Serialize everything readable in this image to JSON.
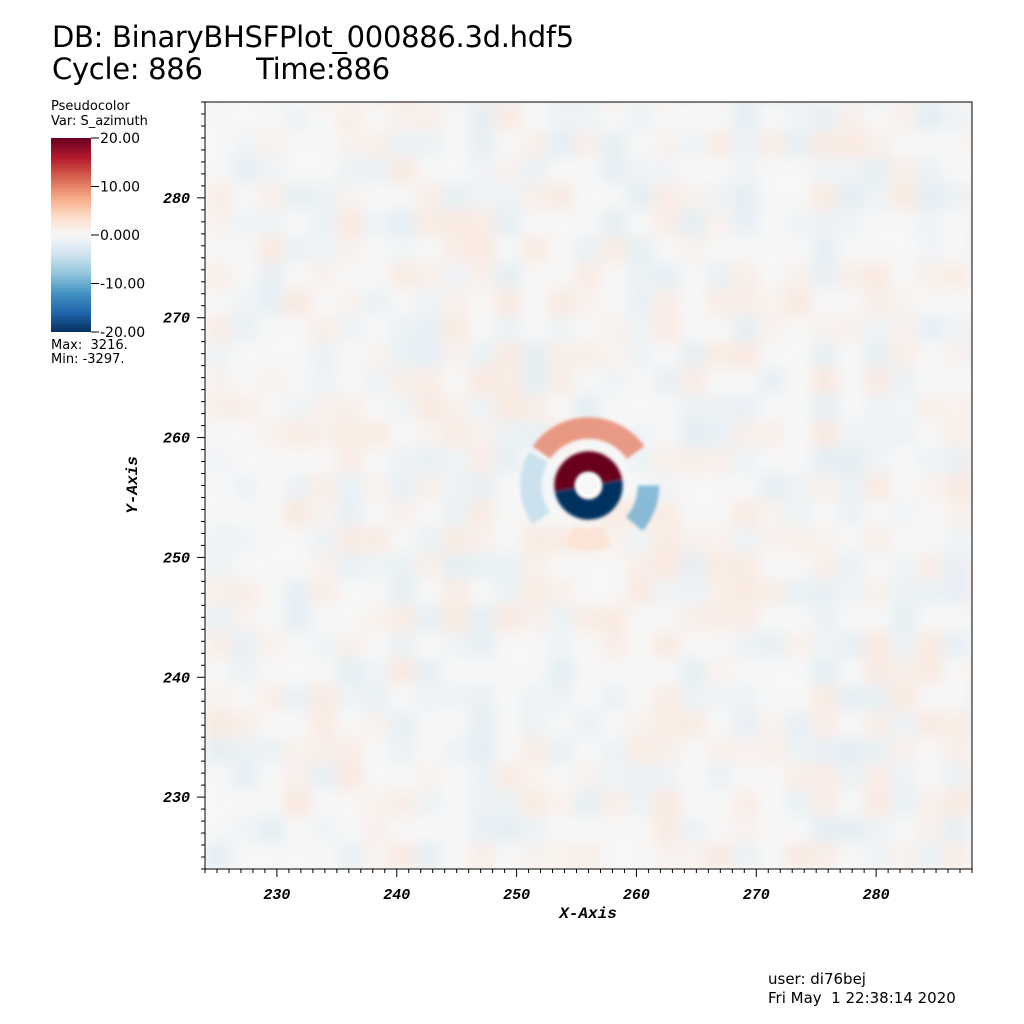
{
  "header": {
    "db_label": "DB: BinaryBHSFPlot_000886.3d.hdf5",
    "cycle_time": "Cycle: 886      Time:886"
  },
  "legend": {
    "plot_type": "Pseudocolor",
    "variable": "Var: S_azimuth",
    "max_label": "Max:  3216.",
    "min_label": "Min: -3297.",
    "colorbar_ticks": [
      {
        "value": 20,
        "label": "20.00"
      },
      {
        "value": 10,
        "label": "10.00"
      },
      {
        "value": 0,
        "label": "0.000"
      },
      {
        "value": -10,
        "label": "-10.00"
      },
      {
        "value": -20,
        "label": "-20.00"
      }
    ],
    "colors": [
      "#053061",
      "#2166ac",
      "#4393c3",
      "#92c5de",
      "#d1e5f0",
      "#f7f7f7",
      "#fddbc7",
      "#f4a582",
      "#d6604d",
      "#b2182b",
      "#67001f"
    ]
  },
  "footer": {
    "user": "user: di76bej",
    "date": "Fri May  1 22:38:14 2020"
  },
  "chart_data": {
    "type": "heatmap",
    "title": "",
    "xlabel": "X-Axis",
    "ylabel": "Y-Axis",
    "xlim": [
      224,
      288
    ],
    "ylim": [
      224,
      288
    ],
    "x_ticks": [
      230,
      240,
      250,
      260,
      270,
      280
    ],
    "y_ticks": [
      230,
      240,
      250,
      260,
      270,
      280
    ],
    "x_tick_labels": [
      "230",
      "240",
      "250",
      "260",
      "270",
      "280"
    ],
    "y_tick_labels": [
      "230",
      "240",
      "250",
      "260",
      "270",
      "280"
    ],
    "center": [
      256,
      256
    ],
    "color_range": [
      -20,
      20
    ],
    "data_max": 3216,
    "data_min": -3297,
    "features": [
      {
        "kind": "arc",
        "cx": 256,
        "cy": 256,
        "radius": 2.0,
        "from_deg": 10,
        "to_deg": 190,
        "value": 20
      },
      {
        "kind": "arc",
        "cx": 256,
        "cy": 256,
        "radius": 2.0,
        "from_deg": 190,
        "to_deg": 370,
        "value": -20
      },
      {
        "kind": "arc",
        "cx": 256,
        "cy": 256,
        "radius": 4.8,
        "from_deg": 35,
        "to_deg": 145,
        "value": 10
      },
      {
        "kind": "arc",
        "cx": 256,
        "cy": 256,
        "radius": 5.0,
        "from_deg": 320,
        "to_deg": 360,
        "value": -10
      },
      {
        "kind": "arc",
        "cx": 256,
        "cy": 256,
        "radius": 4.8,
        "from_deg": 150,
        "to_deg": 215,
        "value": -5
      },
      {
        "kind": "arc",
        "cx": 256,
        "cy": 256,
        "radius": 4.5,
        "from_deg": 250,
        "to_deg": 290,
        "value": 3
      }
    ]
  }
}
